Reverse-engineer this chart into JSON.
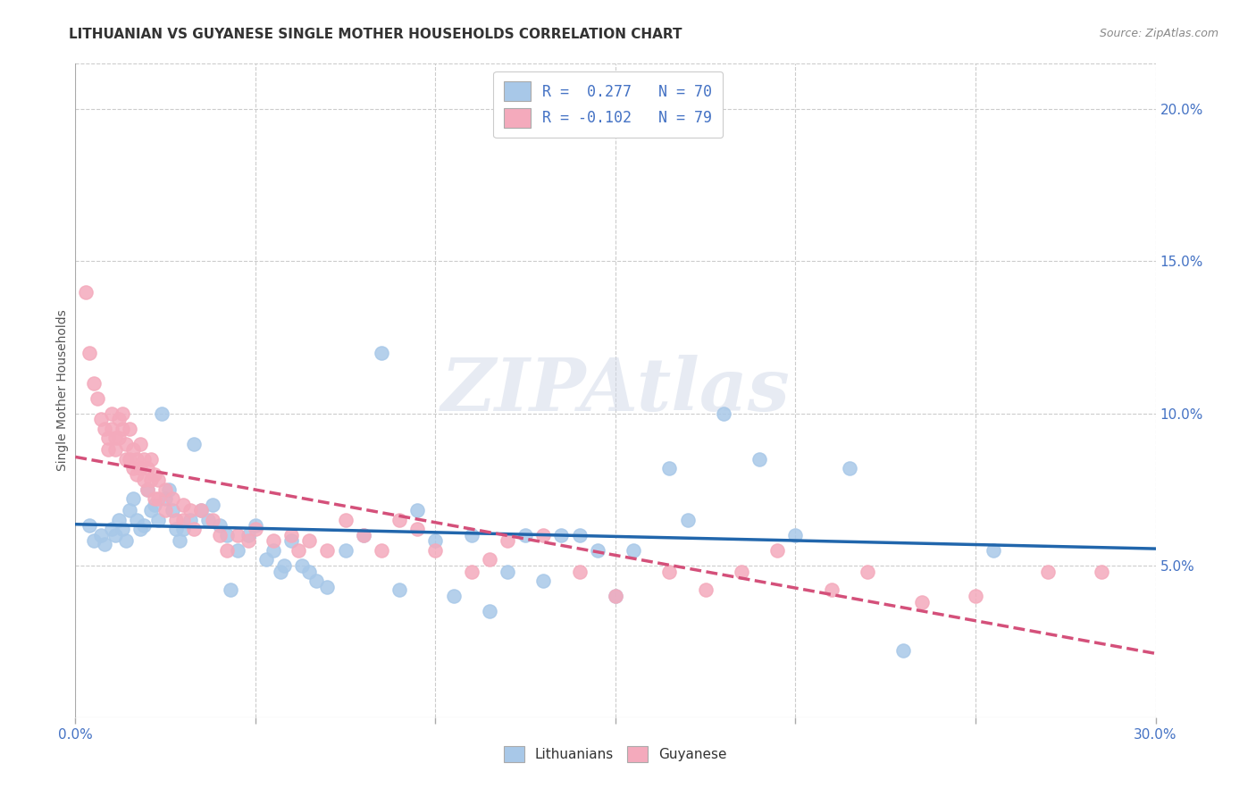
{
  "title": "LITHUANIAN VS GUYANESE SINGLE MOTHER HOUSEHOLDS CORRELATION CHART",
  "source": "Source: ZipAtlas.com",
  "ylabel": "Single Mother Households",
  "xlim": [
    0.0,
    0.3
  ],
  "ylim": [
    0.0,
    0.215
  ],
  "xticks": [
    0.0,
    0.05,
    0.1,
    0.15,
    0.2,
    0.25,
    0.3
  ],
  "yticks": [
    0.05,
    0.1,
    0.15,
    0.2
  ],
  "watermark": "ZIPAtlas",
  "blue_color": "#a8c8e8",
  "pink_color": "#f4aabc",
  "blue_line_color": "#2166ac",
  "pink_line_color": "#d4507a",
  "grid_color": "#cccccc",
  "bg_color": "#ffffff",
  "title_color": "#333333",
  "axis_color": "#4472c4",
  "legend_r_color": "#4472c4",
  "legend_n_color": "#e05050",
  "blue_scatter": [
    [
      0.004,
      0.063
    ],
    [
      0.005,
      0.058
    ],
    [
      0.007,
      0.06
    ],
    [
      0.008,
      0.057
    ],
    [
      0.01,
      0.062
    ],
    [
      0.011,
      0.06
    ],
    [
      0.012,
      0.065
    ],
    [
      0.013,
      0.062
    ],
    [
      0.014,
      0.058
    ],
    [
      0.015,
      0.068
    ],
    [
      0.016,
      0.072
    ],
    [
      0.017,
      0.065
    ],
    [
      0.018,
      0.062
    ],
    [
      0.019,
      0.063
    ],
    [
      0.02,
      0.075
    ],
    [
      0.021,
      0.068
    ],
    [
      0.022,
      0.07
    ],
    [
      0.023,
      0.065
    ],
    [
      0.024,
      0.1
    ],
    [
      0.025,
      0.072
    ],
    [
      0.026,
      0.075
    ],
    [
      0.027,
      0.068
    ],
    [
      0.028,
      0.062
    ],
    [
      0.029,
      0.058
    ],
    [
      0.03,
      0.062
    ],
    [
      0.032,
      0.065
    ],
    [
      0.033,
      0.09
    ],
    [
      0.035,
      0.068
    ],
    [
      0.037,
      0.065
    ],
    [
      0.038,
      0.07
    ],
    [
      0.04,
      0.063
    ],
    [
      0.042,
      0.06
    ],
    [
      0.043,
      0.042
    ],
    [
      0.045,
      0.055
    ],
    [
      0.048,
      0.06
    ],
    [
      0.05,
      0.063
    ],
    [
      0.053,
      0.052
    ],
    [
      0.055,
      0.055
    ],
    [
      0.057,
      0.048
    ],
    [
      0.058,
      0.05
    ],
    [
      0.06,
      0.058
    ],
    [
      0.063,
      0.05
    ],
    [
      0.065,
      0.048
    ],
    [
      0.067,
      0.045
    ],
    [
      0.07,
      0.043
    ],
    [
      0.075,
      0.055
    ],
    [
      0.08,
      0.06
    ],
    [
      0.085,
      0.12
    ],
    [
      0.09,
      0.042
    ],
    [
      0.095,
      0.068
    ],
    [
      0.1,
      0.058
    ],
    [
      0.105,
      0.04
    ],
    [
      0.11,
      0.06
    ],
    [
      0.115,
      0.035
    ],
    [
      0.12,
      0.048
    ],
    [
      0.125,
      0.06
    ],
    [
      0.13,
      0.045
    ],
    [
      0.135,
      0.06
    ],
    [
      0.14,
      0.06
    ],
    [
      0.145,
      0.055
    ],
    [
      0.15,
      0.04
    ],
    [
      0.155,
      0.055
    ],
    [
      0.165,
      0.082
    ],
    [
      0.17,
      0.065
    ],
    [
      0.18,
      0.1
    ],
    [
      0.19,
      0.085
    ],
    [
      0.2,
      0.06
    ],
    [
      0.215,
      0.082
    ],
    [
      0.23,
      0.022
    ],
    [
      0.255,
      0.055
    ]
  ],
  "pink_scatter": [
    [
      0.003,
      0.14
    ],
    [
      0.004,
      0.12
    ],
    [
      0.005,
      0.11
    ],
    [
      0.006,
      0.105
    ],
    [
      0.007,
      0.098
    ],
    [
      0.008,
      0.095
    ],
    [
      0.009,
      0.092
    ],
    [
      0.009,
      0.088
    ],
    [
      0.01,
      0.1
    ],
    [
      0.01,
      0.095
    ],
    [
      0.011,
      0.092
    ],
    [
      0.011,
      0.088
    ],
    [
      0.012,
      0.098
    ],
    [
      0.012,
      0.092
    ],
    [
      0.013,
      0.1
    ],
    [
      0.013,
      0.095
    ],
    [
      0.014,
      0.09
    ],
    [
      0.014,
      0.085
    ],
    [
      0.015,
      0.095
    ],
    [
      0.015,
      0.085
    ],
    [
      0.016,
      0.088
    ],
    [
      0.016,
      0.082
    ],
    [
      0.017,
      0.085
    ],
    [
      0.017,
      0.08
    ],
    [
      0.018,
      0.09
    ],
    [
      0.018,
      0.082
    ],
    [
      0.019,
      0.085
    ],
    [
      0.019,
      0.078
    ],
    [
      0.02,
      0.082
    ],
    [
      0.02,
      0.075
    ],
    [
      0.021,
      0.085
    ],
    [
      0.021,
      0.078
    ],
    [
      0.022,
      0.08
    ],
    [
      0.022,
      0.072
    ],
    [
      0.023,
      0.078
    ],
    [
      0.023,
      0.072
    ],
    [
      0.025,
      0.075
    ],
    [
      0.025,
      0.068
    ],
    [
      0.027,
      0.072
    ],
    [
      0.028,
      0.065
    ],
    [
      0.03,
      0.07
    ],
    [
      0.03,
      0.065
    ],
    [
      0.032,
      0.068
    ],
    [
      0.033,
      0.062
    ],
    [
      0.035,
      0.068
    ],
    [
      0.038,
      0.065
    ],
    [
      0.04,
      0.06
    ],
    [
      0.042,
      0.055
    ],
    [
      0.045,
      0.06
    ],
    [
      0.048,
      0.058
    ],
    [
      0.05,
      0.062
    ],
    [
      0.055,
      0.058
    ],
    [
      0.06,
      0.06
    ],
    [
      0.062,
      0.055
    ],
    [
      0.065,
      0.058
    ],
    [
      0.07,
      0.055
    ],
    [
      0.075,
      0.065
    ],
    [
      0.08,
      0.06
    ],
    [
      0.085,
      0.055
    ],
    [
      0.09,
      0.065
    ],
    [
      0.095,
      0.062
    ],
    [
      0.1,
      0.055
    ],
    [
      0.11,
      0.048
    ],
    [
      0.115,
      0.052
    ],
    [
      0.12,
      0.058
    ],
    [
      0.13,
      0.06
    ],
    [
      0.14,
      0.048
    ],
    [
      0.15,
      0.04
    ],
    [
      0.165,
      0.048
    ],
    [
      0.175,
      0.042
    ],
    [
      0.185,
      0.048
    ],
    [
      0.195,
      0.055
    ],
    [
      0.21,
      0.042
    ],
    [
      0.22,
      0.048
    ],
    [
      0.235,
      0.038
    ],
    [
      0.25,
      0.04
    ],
    [
      0.27,
      0.048
    ],
    [
      0.285,
      0.048
    ]
  ]
}
